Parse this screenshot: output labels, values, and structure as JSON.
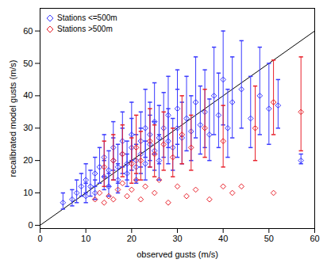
{
  "chart_data": {
    "type": "scatter",
    "x_label": "observed gusts (m/s)",
    "y_label": "recalibrated model gusts (m/s)",
    "xlim": [
      0,
      60
    ],
    "ylim": [
      -1,
      67
    ],
    "xticks": [
      0,
      10,
      20,
      30,
      40,
      50,
      60
    ],
    "yticks": [
      0,
      10,
      20,
      30,
      40,
      50,
      60
    ],
    "legend": "upper left",
    "reference_line": {
      "x": [
        0,
        60
      ],
      "values": [
        0,
        60
      ],
      "color": "#000000"
    },
    "series": [
      {
        "name": "Stations <=500m",
        "color": "#3a3aff",
        "marker": "diamond",
        "x": [
          5,
          7,
          8,
          9,
          10,
          10,
          11,
          12,
          12,
          13,
          14,
          14,
          15,
          15,
          16,
          16,
          17,
          17,
          18,
          18,
          19,
          19,
          20,
          20,
          21,
          21,
          22,
          22,
          23,
          23,
          24,
          24,
          25,
          25,
          26,
          26,
          27,
          28,
          28,
          29,
          30,
          30,
          31,
          32,
          33,
          34,
          35,
          36,
          37,
          38,
          39,
          40,
          41,
          42,
          44,
          46,
          48,
          50,
          52,
          57
        ],
        "values": [
          7,
          8,
          10,
          12,
          9,
          14,
          12,
          16,
          10,
          18,
          15,
          21,
          17,
          12,
          20,
          24,
          18,
          14,
          22,
          26,
          19,
          16,
          24,
          28,
          20,
          18,
          26,
          22,
          30,
          19,
          25,
          28,
          23,
          32,
          27,
          20,
          30,
          26,
          34,
          24,
          30,
          36,
          27,
          33,
          29,
          38,
          31,
          35,
          28,
          40,
          34,
          45,
          30,
          38,
          42,
          33,
          40,
          36,
          37,
          20
        ],
        "y_low": [
          5,
          6,
          7,
          9,
          7,
          10,
          9,
          12,
          8,
          13,
          11,
          15,
          12,
          9,
          14,
          17,
          13,
          10,
          16,
          18,
          14,
          12,
          17,
          20,
          14,
          13,
          18,
          16,
          21,
          14,
          18,
          20,
          17,
          22,
          19,
          14,
          21,
          19,
          24,
          17,
          21,
          25,
          19,
          23,
          20,
          27,
          22,
          24,
          20,
          28,
          24,
          31,
          21,
          27,
          30,
          24,
          28,
          25,
          30,
          19
        ],
        "y_high": [
          10,
          11,
          14,
          16,
          13,
          19,
          17,
          21,
          14,
          24,
          20,
          28,
          23,
          16,
          27,
          32,
          25,
          19,
          30,
          35,
          26,
          22,
          33,
          38,
          28,
          25,
          35,
          30,
          42,
          26,
          34,
          38,
          32,
          44,
          37,
          28,
          41,
          36,
          46,
          33,
          42,
          48,
          38,
          46,
          40,
          52,
          43,
          48,
          39,
          55,
          47,
          60,
          42,
          52,
          57,
          46,
          55,
          50,
          45,
          22
        ]
      },
      {
        "name": "Stations >500m",
        "color": "#e8202a",
        "marker": "diamond",
        "x": [
          12,
          13,
          14,
          15,
          16,
          17,
          18,
          19,
          20,
          21,
          22,
          23,
          25,
          26,
          28,
          30,
          32,
          34,
          37,
          40,
          42,
          44,
          51,
          14,
          16,
          18,
          20,
          21,
          22,
          24,
          25,
          27,
          29,
          31,
          33,
          36,
          40,
          47,
          51,
          57
        ],
        "values": [
          8,
          10,
          7,
          9,
          8,
          11,
          13,
          9,
          11,
          14,
          8,
          12,
          10,
          14,
          7,
          12,
          9,
          11,
          8,
          12,
          10,
          12,
          10,
          18,
          20,
          22,
          19,
          24,
          20,
          26,
          22,
          25,
          21,
          28,
          24,
          30,
          26,
          30,
          38,
          35
        ],
        "y_low": [
          null,
          null,
          null,
          null,
          null,
          null,
          null,
          null,
          null,
          null,
          null,
          null,
          null,
          null,
          null,
          null,
          null,
          null,
          null,
          null,
          null,
          null,
          null,
          12,
          14,
          15,
          13,
          16,
          14,
          18,
          15,
          17,
          15,
          19,
          17,
          21,
          18,
          20,
          28,
          23
        ],
        "y_high": [
          null,
          null,
          null,
          null,
          null,
          null,
          null,
          null,
          null,
          null,
          null,
          null,
          null,
          null,
          null,
          null,
          null,
          null,
          null,
          null,
          null,
          null,
          null,
          26,
          28,
          31,
          27,
          34,
          29,
          36,
          31,
          35,
          30,
          40,
          34,
          42,
          37,
          43,
          51,
          52
        ]
      }
    ]
  }
}
